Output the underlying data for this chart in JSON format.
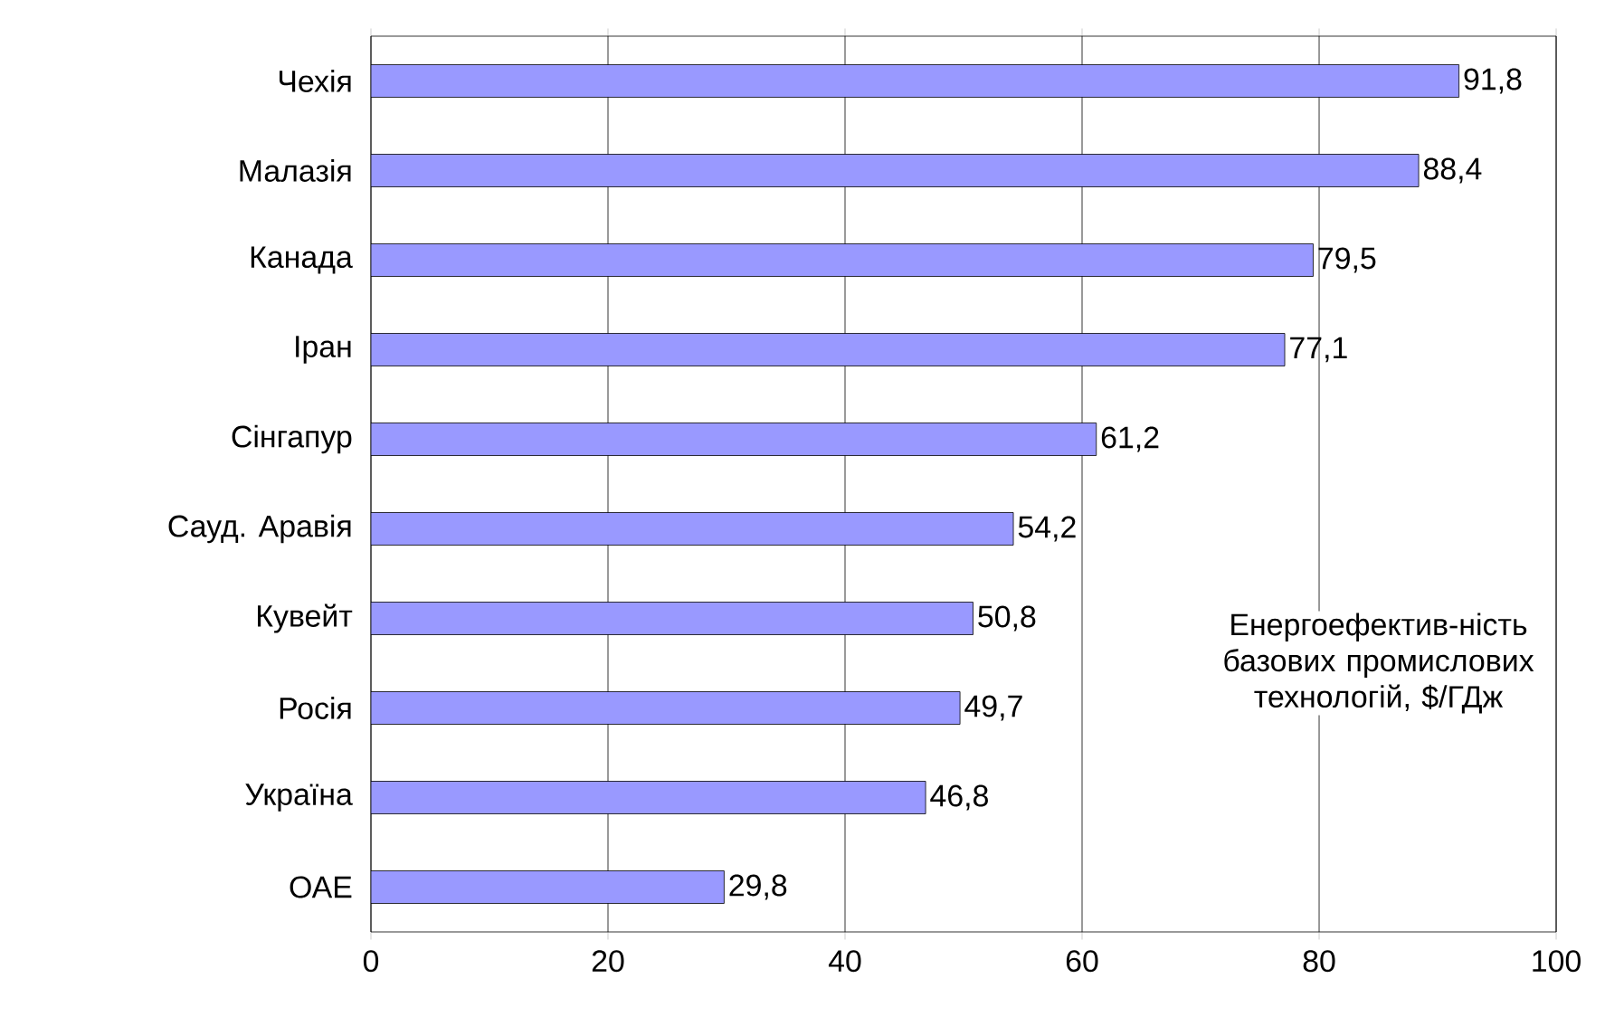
{
  "chart_data": {
    "type": "bar",
    "orientation": "horizontal",
    "categories": [
      "Чехія",
      "Малазія",
      "Канада",
      "Іран",
      "Сінгапур",
      "Сауд. Аравія",
      "Кувейт",
      "Росія",
      "Україна",
      "ОАЕ"
    ],
    "values": [
      91.8,
      88.4,
      79.5,
      77.1,
      61.2,
      54.2,
      50.8,
      49.7,
      46.8,
      29.8
    ],
    "value_labels": [
      "91,8",
      "88,4",
      "79,5",
      "77,1",
      "61,2",
      "54,2",
      "50,8",
      "49,7",
      "46,8",
      "29,8"
    ],
    "color": "#9999ff",
    "xlim": [
      0,
      100
    ],
    "xticks": [
      0,
      20,
      40,
      60,
      80,
      100
    ],
    "grid": "x",
    "annotations": [
      "Енергоефектив-ність базових промислових технологій, $/ГДж"
    ]
  }
}
